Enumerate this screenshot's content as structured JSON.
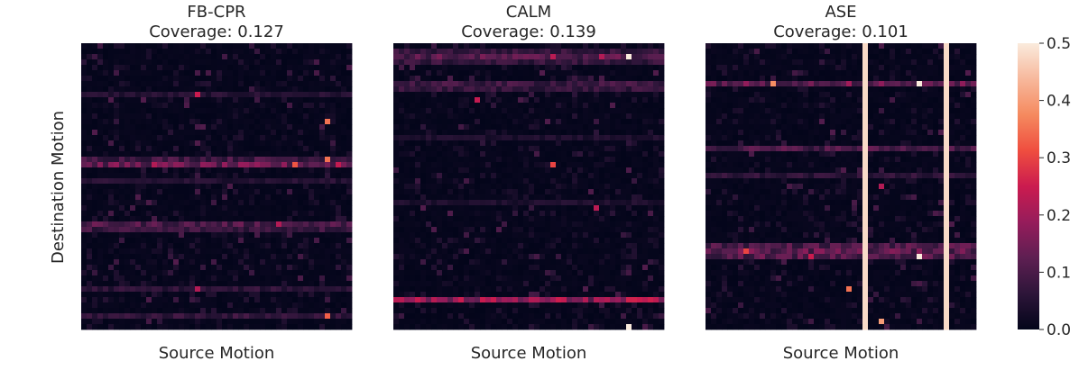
{
  "figure": {
    "ylabel": "Destination Motion",
    "colorbar": {
      "ticks": [
        "0.0",
        "0.1",
        "0.2",
        "0.3",
        "0.4",
        "0.5"
      ],
      "range": [
        0,
        0.5
      ],
      "colormap": "rocket",
      "stops": [
        "#03051a",
        "#2d1539",
        "#5e1f52",
        "#961c5b",
        "#cb1b4f",
        "#ef4e3f",
        "#f58a5f",
        "#f7b89c",
        "#faebdd"
      ]
    }
  },
  "chart_data": [
    {
      "type": "heatmap",
      "title": "FB-CPR",
      "subtitle": "Coverage: 0.127",
      "xlabel": "Source Motion",
      "ylabel": "Destination Motion",
      "grid_size": 50,
      "value_range": [
        0,
        0.5
      ],
      "hot_rows": [
        {
          "row": 9,
          "value": 0.05
        },
        {
          "row": 21,
          "value": 0.09
        },
        {
          "row": 22,
          "value": 0.13
        },
        {
          "row": 25,
          "value": 0.05
        },
        {
          "row": 33,
          "value": 0.1
        },
        {
          "row": 34,
          "value": 0.08
        },
        {
          "row": 45,
          "value": 0.06
        },
        {
          "row": 50,
          "value": 0.07
        }
      ],
      "full_columns": [],
      "hot_cells": [
        {
          "row": 9,
          "col": 21,
          "value": 0.25
        },
        {
          "row": 14,
          "col": 45,
          "value": 0.35
        },
        {
          "row": 21,
          "col": 45,
          "value": 0.35
        },
        {
          "row": 22,
          "col": 39,
          "value": 0.32
        },
        {
          "row": 22,
          "col": 13,
          "value": 0.22
        },
        {
          "row": 22,
          "col": 47,
          "value": 0.24
        },
        {
          "row": 33,
          "col": 36,
          "value": 0.22
        },
        {
          "row": 45,
          "col": 21,
          "value": 0.22
        },
        {
          "row": 50,
          "col": 45,
          "value": 0.33
        }
      ]
    },
    {
      "type": "heatmap",
      "title": "CALM",
      "subtitle": "Coverage: 0.139",
      "xlabel": "Source Motion",
      "ylabel": "",
      "grid_size": 50,
      "value_range": [
        0,
        0.5
      ],
      "hot_rows": [
        {
          "row": 1,
          "value": 0.07
        },
        {
          "row": 2,
          "value": 0.11
        },
        {
          "row": 3,
          "value": 0.07
        },
        {
          "row": 7,
          "value": 0.08
        },
        {
          "row": 8,
          "value": 0.07
        },
        {
          "row": 17,
          "value": 0.04
        },
        {
          "row": 29,
          "value": 0.04
        },
        {
          "row": 47,
          "value": 0.18
        }
      ],
      "full_columns": [],
      "hot_cells": [
        {
          "row": 2,
          "col": 43,
          "value": 0.5
        },
        {
          "row": 2,
          "col": 29,
          "value": 0.23
        },
        {
          "row": 2,
          "col": 38,
          "value": 0.22
        },
        {
          "row": 10,
          "col": 15,
          "value": 0.24
        },
        {
          "row": 22,
          "col": 29,
          "value": 0.3
        },
        {
          "row": 30,
          "col": 37,
          "value": 0.23
        },
        {
          "row": 47,
          "col": 35,
          "value": 0.22
        },
        {
          "row": 52,
          "col": 43,
          "value": 0.5
        }
      ]
    },
    {
      "type": "heatmap",
      "title": "ASE",
      "subtitle": "Coverage: 0.101",
      "xlabel": "Source Motion",
      "ylabel": "",
      "grid_size": 50,
      "value_range": [
        0,
        0.5
      ],
      "hot_rows": [
        {
          "row": 7,
          "value": 0.13
        },
        {
          "row": 19,
          "value": 0.1
        },
        {
          "row": 24,
          "value": 0.06
        },
        {
          "row": 37,
          "value": 0.1
        },
        {
          "row": 38,
          "value": 0.12
        },
        {
          "row": 39,
          "value": 0.11
        }
      ],
      "full_columns": [
        {
          "col": 29,
          "value": 0.48
        },
        {
          "col": 44,
          "value": 0.48
        }
      ],
      "hot_cells": [
        {
          "row": 7,
          "col": 12,
          "value": 0.38
        },
        {
          "row": 7,
          "col": 39,
          "value": 0.5
        },
        {
          "row": 7,
          "col": 26,
          "value": 0.2
        },
        {
          "row": 38,
          "col": 7,
          "value": 0.3
        },
        {
          "row": 39,
          "col": 39,
          "value": 0.5
        },
        {
          "row": 39,
          "col": 19,
          "value": 0.25
        },
        {
          "row": 26,
          "col": 32,
          "value": 0.22
        },
        {
          "row": 45,
          "col": 26,
          "value": 0.35
        },
        {
          "row": 51,
          "col": 32,
          "value": 0.4
        }
      ]
    }
  ]
}
